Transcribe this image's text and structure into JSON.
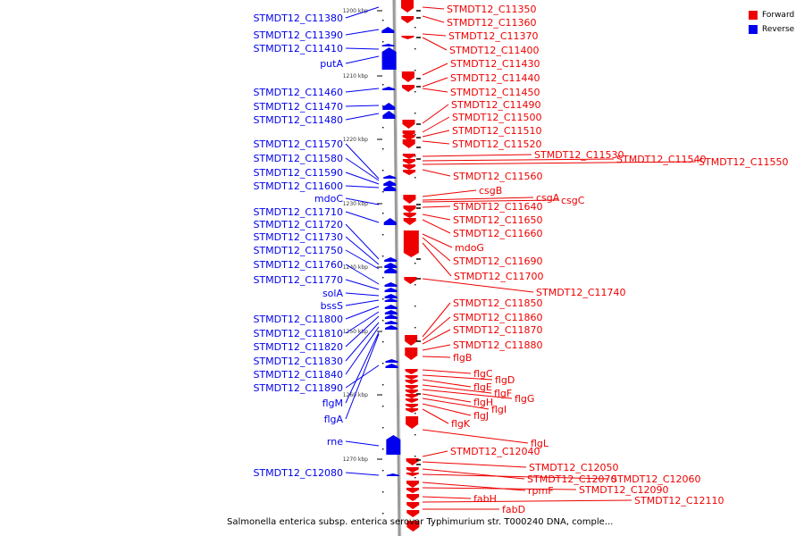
{
  "caption": "Salmonella enterica subsp. enterica serovar Typhimurium str. T000240 DNA, comple...",
  "legend": [
    {
      "label": "Forward",
      "color": "#ee0000"
    },
    {
      "label": "Reverse",
      "color": "#0000ee"
    }
  ],
  "colors": {
    "forward": "#ee0000",
    "reverse": "#0000ee",
    "backbone": "#999999"
  },
  "scale_ticks": [
    "1200 kbp",
    "1210 kbp",
    "1220 kbp",
    "1230 kbp",
    "1240 kbp",
    "1250 kbp",
    "1260 kbp",
    "1270 kbp"
  ],
  "reverse_labels": [
    "STMDT12_C11380",
    "STMDT12_C11390",
    "STMDT12_C11410",
    "putA",
    "STMDT12_C11460",
    "STMDT12_C11470",
    "STMDT12_C11480",
    "STMDT12_C11570",
    "STMDT12_C11580",
    "STMDT12_C11590",
    "STMDT12_C11600",
    "mdoC",
    "STMDT12_C11710",
    "STMDT12_C11720",
    "STMDT12_C11730",
    "STMDT12_C11750",
    "STMDT12_C11760",
    "STMDT12_C11770",
    "solA",
    "bssS",
    "STMDT12_C11800",
    "STMDT12_C11810",
    "STMDT12_C11820",
    "STMDT12_C11830",
    "STMDT12_C11840",
    "STMDT12_C11890",
    "flgM",
    "flgA",
    "rne",
    "STMDT12_C12080"
  ],
  "forward_labels": [
    "STMDT12_C11350",
    "STMDT12_C11360",
    "STMDT12_C11370",
    "STMDT12_C11400",
    "STMDT12_C11430",
    "STMDT12_C11440",
    "STMDT12_C11450",
    "STMDT12_C11490",
    "STMDT12_C11500",
    "STMDT12_C11510",
    "STMDT12_C11520",
    "STMDT12_C11530",
    "STMDT12_C11540",
    "STMDT12_C11550",
    "STMDT12_C11560",
    "csgB",
    "csgA",
    "csgC",
    "STMDT12_C11640",
    "STMDT12_C11650",
    "STMDT12_C11660",
    "mdoG",
    "STMDT12_C11690",
    "STMDT12_C11700",
    "STMDT12_C11740",
    "STMDT12_C11850",
    "STMDT12_C11860",
    "STMDT12_C11870",
    "STMDT12_C11880",
    "flgB",
    "flgC",
    "flgD",
    "flgE",
    "flgF",
    "flgG",
    "flgH",
    "flgI",
    "flgJ",
    "flgK",
    "flgL",
    "STMDT12_C12040",
    "STMDT12_C12050",
    "STMDT12_C12070",
    "STMDT12_C12060",
    "rpmF",
    "STMDT12_C12090",
    "fabH",
    "STMDT12_C12110",
    "fabD"
  ]
}
